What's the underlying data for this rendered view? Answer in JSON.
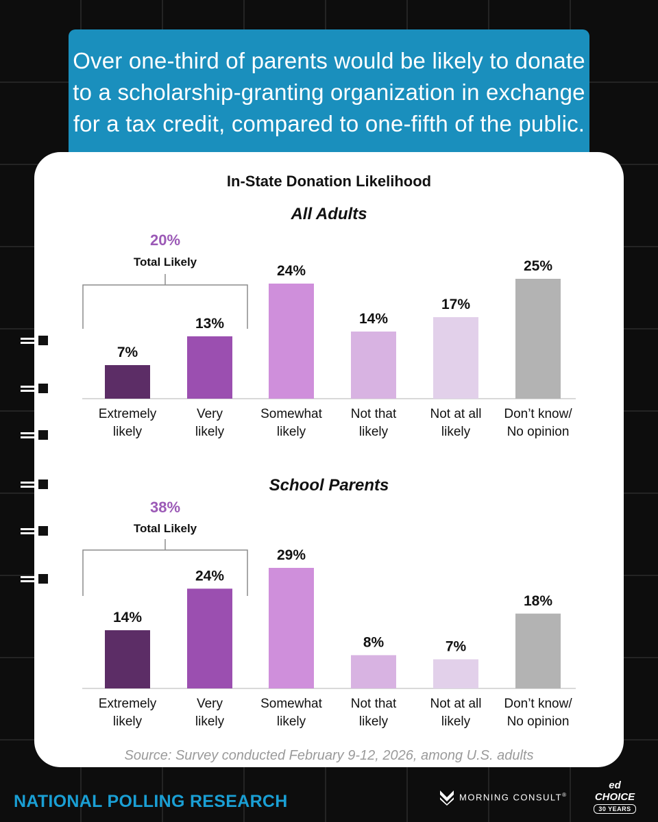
{
  "headline": "Over one-third of parents would be likely to donate to a scholarship-granting organization in exchange for a tax credit, compared to one-fifth of the public.",
  "headline_lines": [
    "Over one-third of parents would be likely to donate",
    "to a scholarship-granting organization in exchange",
    "for a tax credit, compared to one-fifth of the public."
  ],
  "chart_title": "In-State Donation Likelihood",
  "source": "Source: Survey conducted February 9-12, 2026, among U.S. adults",
  "footer": {
    "left_label": "NATIONAL POLLING RESEARCH",
    "morning_consult": "MORNING CONSULT",
    "registered": "®",
    "edchoice_top": "ed CHOICE",
    "edchoice_badge": "30 YEARS"
  },
  "colors": {
    "background": "#0d0d0d",
    "headline_bg": "#1a8fbd",
    "footer_blue": "#1a9fd4",
    "total_likely": "#9b59b6",
    "bars": [
      "#5c2d66",
      "#9b4fb0",
      "#cf8fdb",
      "#d8b3e2",
      "#e2d0ea",
      "#b3b3b3"
    ]
  },
  "chart_data": [
    {
      "type": "bar",
      "title": "All Adults",
      "categories": [
        [
          "Extremely",
          "likely"
        ],
        [
          "Very",
          "likely"
        ],
        [
          "Somewhat",
          "likely"
        ],
        [
          "Not that",
          "likely"
        ],
        [
          "Not at all",
          "likely"
        ],
        [
          "Don’t know/",
          "No opinion"
        ]
      ],
      "values": [
        7,
        13,
        24,
        14,
        17,
        25
      ],
      "value_labels": [
        "7%",
        "13%",
        "24%",
        "14%",
        "17%",
        "25%"
      ],
      "total_likely_value": "20%",
      "total_likely_label": "Total Likely",
      "unit": "%",
      "ylim": [
        0,
        25
      ]
    },
    {
      "type": "bar",
      "title": "School Parents",
      "categories": [
        [
          "Extremely",
          "likely"
        ],
        [
          "Very",
          "likely"
        ],
        [
          "Somewhat",
          "likely"
        ],
        [
          "Not that",
          "likely"
        ],
        [
          "Not at all",
          "likely"
        ],
        [
          "Don’t know/",
          "No opinion"
        ]
      ],
      "values": [
        14,
        24,
        29,
        8,
        7,
        18
      ],
      "value_labels": [
        "14%",
        "24%",
        "29%",
        "8%",
        "7%",
        "18%"
      ],
      "total_likely_value": "38%",
      "total_likely_label": "Total Likely",
      "unit": "%",
      "ylim": [
        0,
        29
      ]
    }
  ]
}
